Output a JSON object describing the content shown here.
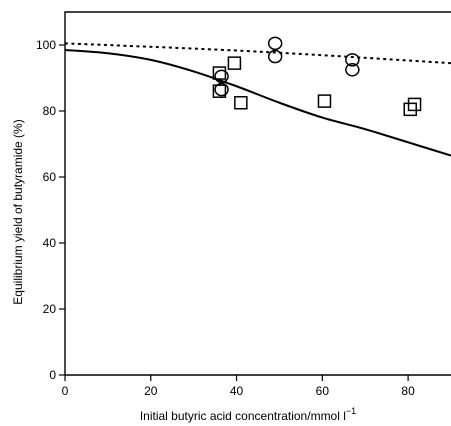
{
  "chart_data": {
    "type": "scatter",
    "title": "",
    "xlabel": "Initial butyric acid concentration/mmol l",
    "xlabel_superscript": "−1",
    "ylabel": "Equilibrium yield of butyramide (%)",
    "xlim": [
      0,
      90
    ],
    "ylim": [
      0,
      110
    ],
    "xticks": [
      0,
      20,
      40,
      60,
      80
    ],
    "yticks": [
      0,
      20,
      40,
      60,
      80,
      100
    ],
    "grid": false,
    "legend": "none",
    "series": [
      {
        "marker": "circle",
        "points": [
          [
            36.5,
            86.5
          ],
          [
            36.5,
            90.5
          ],
          [
            49,
            96.5
          ],
          [
            49,
            100.5
          ],
          [
            67,
            92.5
          ],
          [
            67,
            95.5
          ]
        ]
      },
      {
        "marker": "square",
        "points": [
          [
            36,
            86
          ],
          [
            36,
            91.5
          ],
          [
            39.5,
            94.5
          ],
          [
            41,
            82.5
          ],
          [
            60.5,
            83
          ],
          [
            80.5,
            80.5
          ],
          [
            81.5,
            82
          ]
        ]
      },
      {
        "marker": "dashed-line",
        "points": [
          [
            0,
            100.5
          ],
          [
            45,
            98
          ],
          [
            90,
            94.5
          ]
        ]
      },
      {
        "marker": "solid-line",
        "points": [
          [
            0,
            98.5
          ],
          [
            10,
            97.5
          ],
          [
            20,
            95.5
          ],
          [
            30,
            92
          ],
          [
            40,
            87.5
          ],
          [
            50,
            82.5
          ],
          [
            60,
            78
          ],
          [
            70,
            74.5
          ],
          [
            80,
            70.5
          ],
          [
            90,
            66.5
          ]
        ]
      }
    ]
  }
}
